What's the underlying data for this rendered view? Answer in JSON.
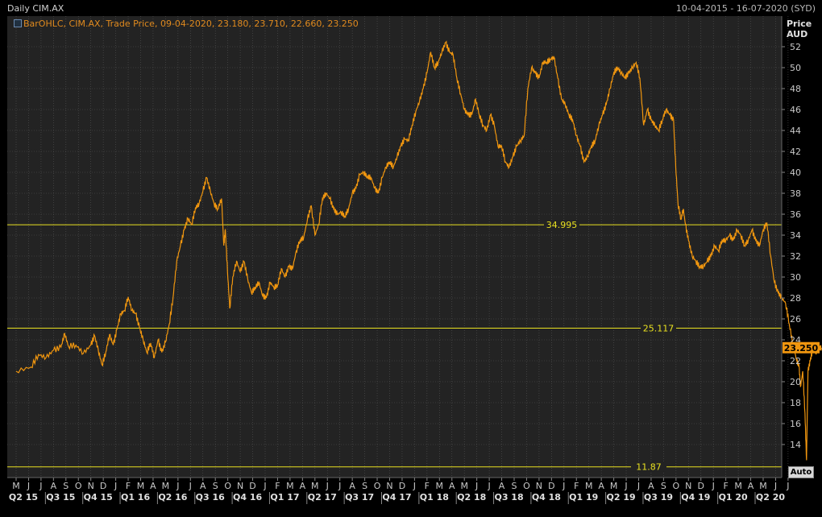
{
  "window": {
    "title": "Daily CIM.AX",
    "date_range": "10-04-2015 - 16-07-2020 (SYD)"
  },
  "legend": {
    "text": "BarOHLC, CIM.AX, Trade Price, 09-04-2020, 23.180, 23.710, 22.660, 23.250"
  },
  "axis": {
    "unit_line1": "Price",
    "unit_line2": "AUD",
    "auto_label": "Auto"
  },
  "colors": {
    "background": "#232323",
    "grid": "#555555",
    "series": "#f0960f",
    "hline": "#e8e020",
    "last_price_bg": "#f0960f"
  },
  "chart_data": {
    "type": "line",
    "title": "Daily CIM.AX",
    "ylabel": "Price AUD",
    "ylim": [
      12,
      53
    ],
    "yticks": [
      14,
      16,
      18,
      20,
      22,
      24,
      26,
      28,
      30,
      32,
      34,
      36,
      38,
      40,
      42,
      44,
      46,
      48,
      50,
      52
    ],
    "month_labels": [
      "M",
      "J",
      "J",
      "A",
      "S",
      "O",
      "N",
      "D",
      "J",
      "F",
      "M",
      "A",
      "M",
      "J",
      "J",
      "A",
      "S",
      "O",
      "N",
      "D",
      "J",
      "F",
      "M",
      "A",
      "M",
      "J",
      "J",
      "A",
      "S",
      "O",
      "N",
      "D",
      "J",
      "F",
      "M",
      "A",
      "M",
      "J",
      "J",
      "A",
      "S",
      "O",
      "N",
      "D",
      "J",
      "F",
      "M",
      "A",
      "M",
      "J",
      "J",
      "A",
      "S",
      "O",
      "N",
      "D",
      "J",
      "F",
      "M",
      "A",
      "M",
      "J",
      "J"
    ],
    "quarter_labels": [
      "Q2 15",
      "Q3 15",
      "Q4 15",
      "Q1 16",
      "Q2 16",
      "Q3 16",
      "Q4 16",
      "Q1 17",
      "Q2 17",
      "Q3 17",
      "Q4 17",
      "Q1 18",
      "Q2 18",
      "Q3 18",
      "Q4 18",
      "Q1 19",
      "Q2 19",
      "Q3 19",
      "Q4 19",
      "Q1 20",
      "Q2 20"
    ],
    "horizontal_lines": [
      {
        "value": 34.995,
        "label": "34.995"
      },
      {
        "value": 25.117,
        "label": "25.117"
      },
      {
        "value": 11.87,
        "label": "11.87"
      }
    ],
    "last_price": {
      "value": 23.25,
      "label": "23.250"
    },
    "series": [
      {
        "values": [
          [
            0,
            21.0
          ],
          [
            2,
            21.4
          ],
          [
            3,
            22.6
          ],
          [
            4,
            22.3
          ],
          [
            5,
            23.0
          ],
          [
            6,
            23.3
          ],
          [
            6.5,
            24.6
          ],
          [
            7,
            23.4
          ],
          [
            8,
            23.5
          ],
          [
            9,
            22.7
          ],
          [
            10,
            23.5
          ],
          [
            10.5,
            24.4
          ],
          [
            11,
            23.0
          ],
          [
            11.5,
            21.6
          ],
          [
            12,
            22.8
          ],
          [
            12.5,
            24.5
          ],
          [
            13,
            23.5
          ],
          [
            13.5,
            25.0
          ],
          [
            14,
            26.5
          ],
          [
            14.5,
            26.8
          ],
          [
            15,
            28.1
          ],
          [
            15.5,
            26.8
          ],
          [
            16,
            26.5
          ],
          [
            16.5,
            25.2
          ],
          [
            17,
            24.0
          ],
          [
            17.5,
            22.8
          ],
          [
            18,
            23.7
          ],
          [
            18.5,
            22.3
          ],
          [
            19,
            24.0
          ],
          [
            19.5,
            22.8
          ],
          [
            20,
            23.8
          ],
          [
            20.5,
            25.5
          ],
          [
            21,
            28.0
          ],
          [
            21.5,
            31.5
          ],
          [
            22,
            33.0
          ],
          [
            22.5,
            34.5
          ],
          [
            23,
            35.6
          ],
          [
            23.5,
            35.0
          ],
          [
            24,
            36.6
          ],
          [
            24.5,
            37.0
          ],
          [
            25,
            38.2
          ],
          [
            25.5,
            39.5
          ],
          [
            26,
            38.2
          ],
          [
            26.5,
            37.0
          ],
          [
            27,
            36.5
          ],
          [
            27.5,
            37.5
          ],
          [
            27.8,
            33.0
          ],
          [
            28,
            34.5
          ],
          [
            28.3,
            30.5
          ],
          [
            28.6,
            27.0
          ],
          [
            29,
            30.0
          ],
          [
            29.5,
            31.5
          ],
          [
            30,
            30.5
          ],
          [
            30.5,
            31.5
          ],
          [
            31,
            29.8
          ],
          [
            31.5,
            28.5
          ],
          [
            32,
            29.0
          ],
          [
            32.5,
            29.5
          ],
          [
            33,
            28.2
          ],
          [
            33.5,
            28.0
          ],
          [
            34,
            29.5
          ],
          [
            34.5,
            29.0
          ],
          [
            35,
            29.2
          ],
          [
            35.5,
            30.8
          ],
          [
            36,
            30.0
          ],
          [
            36.5,
            31.0
          ],
          [
            37,
            30.8
          ],
          [
            37.5,
            32.5
          ],
          [
            38,
            33.5
          ],
          [
            38.5,
            33.8
          ],
          [
            39,
            35.5
          ],
          [
            39.5,
            36.8
          ],
          [
            40,
            34.0
          ],
          [
            40.5,
            35.0
          ],
          [
            41,
            37.5
          ],
          [
            41.5,
            38.0
          ],
          [
            42,
            37.5
          ],
          [
            42.5,
            36.5
          ],
          [
            43,
            36.0
          ],
          [
            43.5,
            36.2
          ],
          [
            44,
            35.8
          ],
          [
            44.5,
            36.5
          ],
          [
            45,
            38.0
          ],
          [
            45.5,
            38.5
          ],
          [
            46,
            39.8
          ],
          [
            46.5,
            40.0
          ],
          [
            47,
            39.6
          ],
          [
            47.5,
            39.5
          ],
          [
            48,
            38.5
          ],
          [
            48.5,
            38.0
          ],
          [
            49,
            39.5
          ],
          [
            49.5,
            40.5
          ],
          [
            50,
            41.0
          ],
          [
            50.5,
            40.5
          ],
          [
            51,
            41.5
          ],
          [
            51.5,
            42.5
          ],
          [
            52,
            43.2
          ],
          [
            52.5,
            43.0
          ],
          [
            53,
            44.5
          ],
          [
            53.5,
            45.8
          ],
          [
            54,
            46.8
          ],
          [
            54.5,
            48.0
          ],
          [
            55,
            49.5
          ],
          [
            55.5,
            51.5
          ],
          [
            56,
            50.0
          ],
          [
            56.5,
            50.5
          ],
          [
            57,
            51.5
          ],
          [
            57.5,
            52.4
          ],
          [
            58,
            51.5
          ],
          [
            58.5,
            51.2
          ],
          [
            59,
            49.0
          ],
          [
            59.5,
            47.5
          ],
          [
            60,
            46.0
          ],
          [
            60.5,
            45.5
          ],
          [
            61,
            45.5
          ],
          [
            61.5,
            47.0
          ],
          [
            62,
            45.5
          ],
          [
            62.5,
            44.5
          ],
          [
            63,
            44.0
          ],
          [
            63.5,
            45.5
          ],
          [
            64,
            44.5
          ],
          [
            64.5,
            42.5
          ],
          [
            65,
            42.5
          ],
          [
            65.5,
            41.0
          ],
          [
            66,
            40.5
          ],
          [
            66.5,
            41.5
          ],
          [
            67,
            42.5
          ],
          [
            67.5,
            43.0
          ],
          [
            68,
            43.5
          ],
          [
            68.5,
            48.0
          ],
          [
            69,
            50.0
          ],
          [
            69.5,
            49.5
          ],
          [
            70,
            49.0
          ],
          [
            70.5,
            50.5
          ],
          [
            71,
            50.5
          ],
          [
            71.5,
            50.8
          ],
          [
            72,
            51.0
          ],
          [
            72.5,
            49.0
          ],
          [
            73,
            47.0
          ],
          [
            73.5,
            46.5
          ],
          [
            74,
            45.5
          ],
          [
            74.5,
            45.0
          ],
          [
            75,
            43.5
          ],
          [
            75.5,
            42.5
          ],
          [
            76,
            41.0
          ],
          [
            76.5,
            41.5
          ],
          [
            77,
            42.5
          ],
          [
            77.5,
            43.0
          ],
          [
            78,
            44.5
          ],
          [
            78.5,
            45.5
          ],
          [
            79,
            46.5
          ],
          [
            79.5,
            48.0
          ],
          [
            80,
            49.5
          ],
          [
            80.5,
            50.0
          ],
          [
            81,
            49.5
          ],
          [
            81.5,
            49.0
          ],
          [
            82,
            49.5
          ],
          [
            82.5,
            50.0
          ],
          [
            83,
            50.5
          ],
          [
            83.5,
            49.0
          ],
          [
            84,
            44.5
          ],
          [
            84.5,
            46.0
          ],
          [
            85,
            45.0
          ],
          [
            85.5,
            44.5
          ],
          [
            86,
            44.0
          ],
          [
            86.5,
            45.0
          ],
          [
            87,
            46.0
          ],
          [
            87.5,
            45.5
          ],
          [
            88,
            45.0
          ],
          [
            88.3,
            40.5
          ],
          [
            88.6,
            37.0
          ],
          [
            89,
            35.5
          ],
          [
            89.3,
            36.5
          ],
          [
            89.6,
            35.0
          ],
          [
            90,
            33.5
          ],
          [
            90.5,
            32.0
          ],
          [
            91,
            31.5
          ],
          [
            91.5,
            31.0
          ],
          [
            92,
            31.0
          ],
          [
            92.5,
            31.5
          ],
          [
            93,
            32.0
          ],
          [
            93.5,
            33.0
          ],
          [
            94,
            32.5
          ],
          [
            94.5,
            33.5
          ],
          [
            95,
            33.5
          ],
          [
            95.5,
            34.0
          ],
          [
            96,
            33.5
          ],
          [
            96.5,
            34.5
          ],
          [
            97,
            34.0
          ],
          [
            97.5,
            33.0
          ],
          [
            98,
            33.5
          ],
          [
            98.5,
            34.5
          ],
          [
            99,
            33.5
          ],
          [
            99.5,
            33.0
          ],
          [
            100,
            34.5
          ],
          [
            100.5,
            35.2
          ],
          [
            101,
            32.0
          ],
          [
            101.5,
            29.5
          ],
          [
            102,
            28.5
          ],
          [
            102.5,
            28.0
          ],
          [
            103,
            27.5
          ],
          [
            103.5,
            25.5
          ],
          [
            104,
            23.5
          ],
          [
            104.5,
            22.0
          ],
          [
            104.8,
            21.5
          ],
          [
            105,
            19.5
          ],
          [
            105.3,
            21.0
          ],
          [
            105.6,
            17.0
          ],
          [
            105.8,
            12.5
          ],
          [
            106,
            21.0
          ],
          [
            106.3,
            22.0
          ],
          [
            106.6,
            23.0
          ],
          [
            107,
            22.8
          ],
          [
            107.5,
            23.2
          ],
          [
            107.8,
            23.25
          ]
        ]
      }
    ]
  }
}
